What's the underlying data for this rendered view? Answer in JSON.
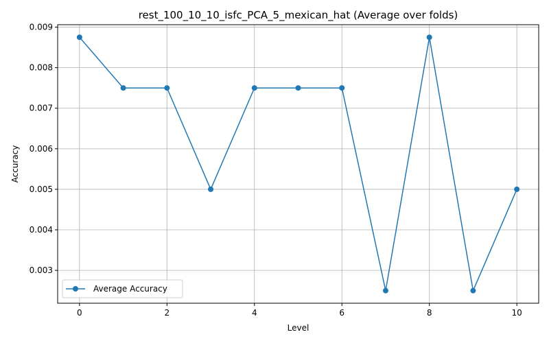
{
  "chart_data": {
    "type": "line",
    "title": "rest_100_10_10_isfc_PCA_5_mexican_hat (Average over folds)",
    "xlabel": "Level",
    "ylabel": "Accuracy",
    "x": [
      0,
      1,
      2,
      3,
      4,
      5,
      6,
      7,
      8,
      9,
      10
    ],
    "series": [
      {
        "name": "Average Accuracy",
        "color": "#1f77b4",
        "values": [
          0.00875,
          0.0075,
          0.0075,
          0.005,
          0.0075,
          0.0075,
          0.0075,
          0.0025,
          0.00875,
          0.0025,
          0.005
        ]
      }
    ],
    "xlim": [
      -0.5,
      10.5
    ],
    "ylim": [
      0.00219,
      0.00906
    ],
    "xticks": [
      0,
      2,
      4,
      6,
      8,
      10
    ],
    "xtick_labels": [
      "0",
      "2",
      "4",
      "6",
      "8",
      "10"
    ],
    "yticks": [
      0.003,
      0.004,
      0.005,
      0.006,
      0.007,
      0.008,
      0.009
    ],
    "ytick_labels": [
      "0.003",
      "0.004",
      "0.005",
      "0.006",
      "0.007",
      "0.008",
      "0.009"
    ],
    "grid": true,
    "legend_position": "lower-left"
  }
}
